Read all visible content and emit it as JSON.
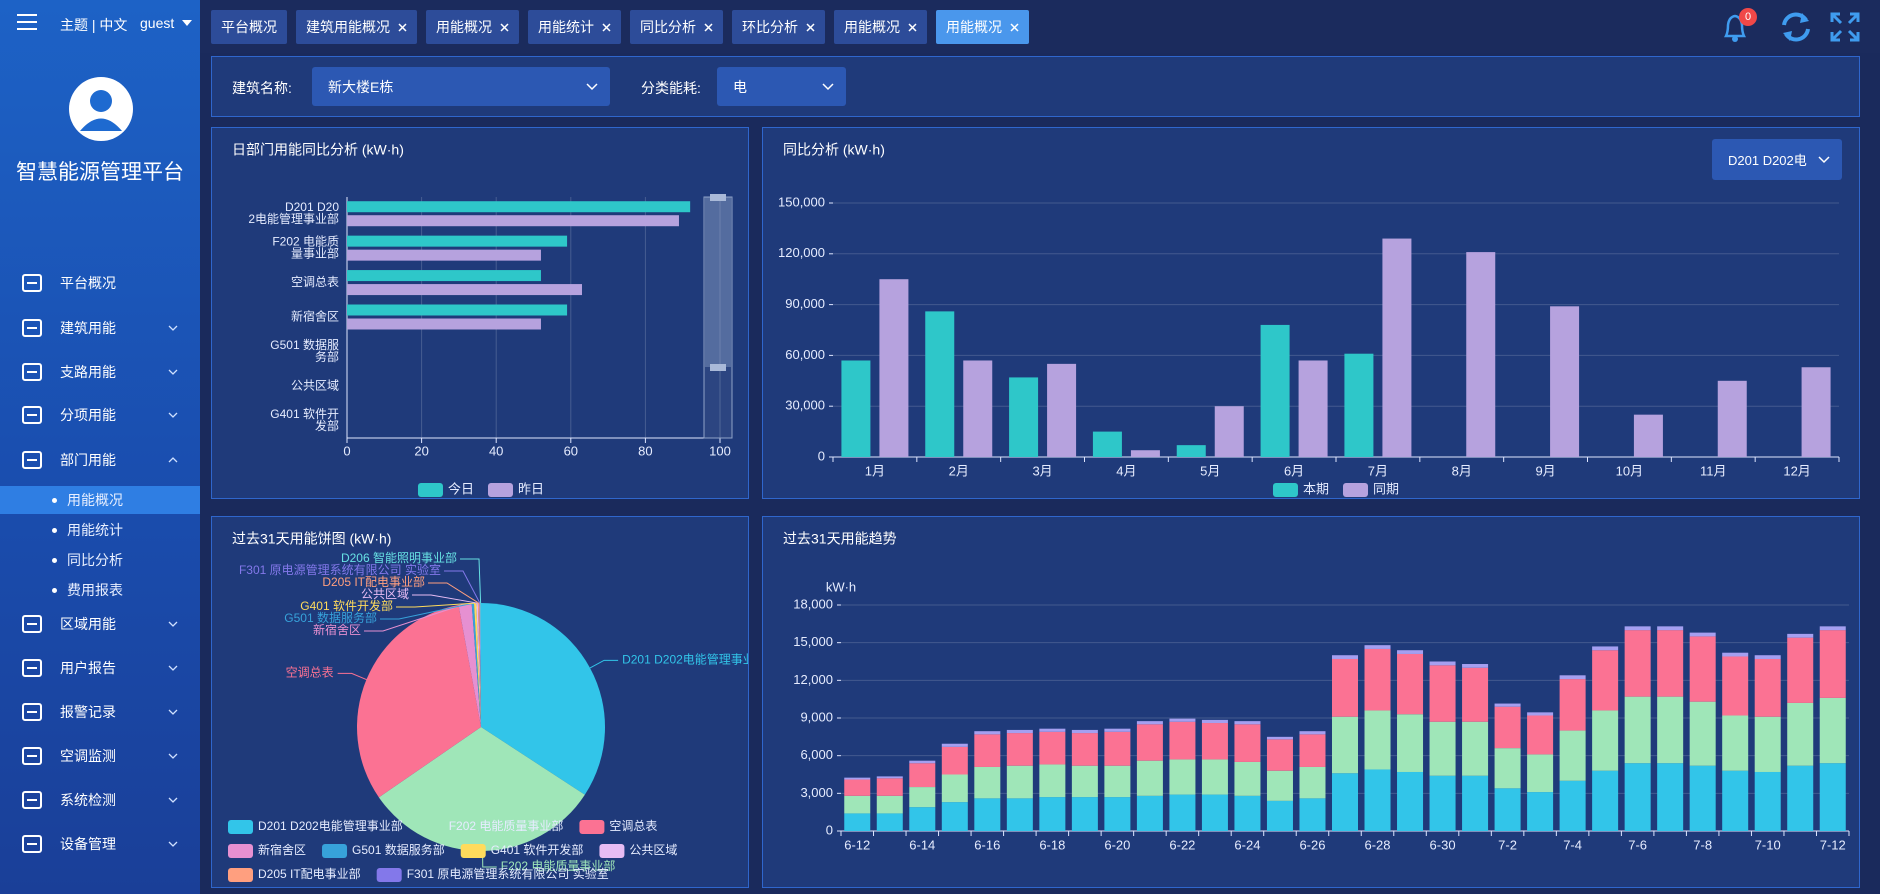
{
  "header": {
    "theme_lang": "主题 | 中文",
    "user": "guest",
    "notifications": 0
  },
  "sidebar": {
    "title": "智慧能源管理平台",
    "menu": [
      "平台概况",
      "建筑用能",
      "支路用能",
      "分项用能",
      "部门用能",
      "区域用能",
      "用户报告",
      "报警记录",
      "空调监测",
      "系统检测",
      "设备管理"
    ],
    "submenu": [
      "用能概况",
      "用能统计",
      "同比分析",
      "费用报表"
    ]
  },
  "tabs": [
    "平台概况",
    "建筑用能概况",
    "用能概况",
    "用能统计",
    "同比分析",
    "环比分析",
    "用能概况",
    "用能概况"
  ],
  "filters": {
    "building_label": "建筑名称:",
    "building_value": "新大楼E栋",
    "category_label": "分类能耗:",
    "category_value": "电"
  },
  "chart_data": [
    {
      "type": "bar",
      "horizontal": true,
      "title": "日部门用能同比分析 (kW·h)",
      "categories": [
        "D201 D202电能管理事业部",
        "F202 电能质量事业部",
        "空调总表",
        "新宿舍区",
        "G501 数据服务部",
        "公共区域",
        "G401 软件开发部"
      ],
      "series": [
        {
          "name": "今日",
          "color": "#2ec7c9",
          "values": [
            92,
            59,
            52,
            59,
            null,
            null,
            null
          ]
        },
        {
          "name": "昨日",
          "color": "#b6a2de",
          "values": [
            89,
            52,
            63,
            52,
            null,
            null,
            null
          ]
        }
      ],
      "xlim": [
        0,
        100
      ],
      "xticks": [
        0,
        20,
        40,
        60,
        80,
        100
      ],
      "grid": true
    },
    {
      "type": "bar",
      "title": "同比分析 (kW·h)",
      "dropdown": "D201 D202电",
      "categories": [
        "1月",
        "2月",
        "3月",
        "4月",
        "5月",
        "6月",
        "7月",
        "8月",
        "9月",
        "10月",
        "11月",
        "12月"
      ],
      "series": [
        {
          "name": "本期",
          "color": "#2ec7c9",
          "values": [
            57000,
            86000,
            47000,
            15000,
            7000,
            78000,
            61000,
            null,
            null,
            null,
            null,
            null
          ]
        },
        {
          "name": "同期",
          "color": "#b6a2de",
          "values": [
            105000,
            57000,
            55000,
            4000,
            30000,
            57000,
            129000,
            121000,
            89000,
            25000,
            45000,
            53000
          ]
        }
      ],
      "ylim": [
        0,
        150000
      ],
      "yticks": [
        0,
        {
          "value": 30000,
          "label": "30,000"
        },
        {
          "value": 60000,
          "label": "60,000"
        },
        {
          "value": 90000,
          "label": "90,000"
        },
        {
          "value": 120000,
          "label": "120,000"
        },
        {
          "value": 150000,
          "label": "150,000"
        }
      ],
      "grid": true
    },
    {
      "type": "pie",
      "title": "过去31天用能饼图 (kW·h)",
      "categories": [
        "D201 D202电能管理事业部",
        "F202 电能质量事业部",
        "空调总表",
        "新宿舍区",
        "G501 数据服务部",
        "G401 软件开发部",
        "公共区域",
        "D205 IT配电事业部",
        "F301 原电源管理系统有限公司 实验室",
        "D206 智能照明事业部"
      ],
      "values": [
        34.2,
        31.2,
        31.7,
        1.7,
        0.3,
        0.3,
        0.2,
        0.2,
        0.1,
        0.1
      ],
      "colors": [
        "#32c5e9",
        "#9fe6b8",
        "#fb7293",
        "#e690d1",
        "#37a2da",
        "#ffdb5c",
        "#e7bcf3",
        "#ff9f7f",
        "#8378ea",
        "#67e0e3"
      ]
    },
    {
      "type": "bar",
      "stacked": true,
      "title": "过去31天用能趋势",
      "y_label": "kW·h",
      "categories": [
        "6-12",
        null,
        "6-14",
        null,
        "6-16",
        null,
        "6-18",
        null,
        "6-20",
        null,
        "6-22",
        null,
        "6-24",
        null,
        "6-26",
        null,
        "6-28",
        null,
        "6-30",
        null,
        "7-2",
        null,
        "7-4",
        null,
        "7-6",
        null,
        "7-8",
        null,
        "7-10",
        null,
        "7-12"
      ],
      "series": [
        {
          "color": "#32c5e9",
          "values": [
            1400,
            1400,
            1900,
            2300,
            2600,
            2600,
            2700,
            2700,
            2700,
            2800,
            2900,
            2900,
            2800,
            2400,
            2600,
            4600,
            4900,
            4700,
            4400,
            4400,
            3400,
            3100,
            4000,
            4800,
            5400,
            5400,
            5200,
            4800,
            4700,
            5200,
            5400
          ]
        },
        {
          "color": "#9fe6b8",
          "values": [
            1400,
            1400,
            1600,
            2200,
            2500,
            2600,
            2600,
            2500,
            2500,
            2800,
            2800,
            2800,
            2700,
            2400,
            2500,
            4500,
            4700,
            4600,
            4300,
            4300,
            3200,
            3000,
            4000,
            4800,
            5300,
            5300,
            5100,
            4400,
            4400,
            5000,
            5200
          ]
        },
        {
          "color": "#fb7293",
          "values": [
            1300,
            1400,
            1900,
            2200,
            2600,
            2600,
            2600,
            2600,
            2700,
            2900,
            3000,
            2900,
            3000,
            2500,
            2600,
            4600,
            4900,
            4800,
            4500,
            4300,
            3300,
            3100,
            4100,
            4800,
            5300,
            5300,
            5200,
            4700,
            4600,
            5200,
            5400
          ]
        },
        {
          "color": "#a59ff0",
          "values": [
            150,
            150,
            200,
            250,
            250,
            250,
            250,
            250,
            250,
            250,
            250,
            250,
            250,
            200,
            250,
            300,
            300,
            300,
            300,
            300,
            250,
            250,
            300,
            300,
            300,
            300,
            300,
            300,
            300,
            300,
            300
          ]
        }
      ],
      "ylim": [
        0,
        18000
      ],
      "yticks": [
        0,
        {
          "value": 3000,
          "label": "3,000"
        },
        {
          "value": 6000,
          "label": "6,000"
        },
        {
          "value": 9000,
          "label": "9,000"
        },
        {
          "value": 12000,
          "label": "12,000"
        },
        {
          "value": 15000,
          "label": "15,000"
        },
        {
          "value": 18000,
          "label": "18,000"
        }
      ],
      "grid": true
    }
  ]
}
